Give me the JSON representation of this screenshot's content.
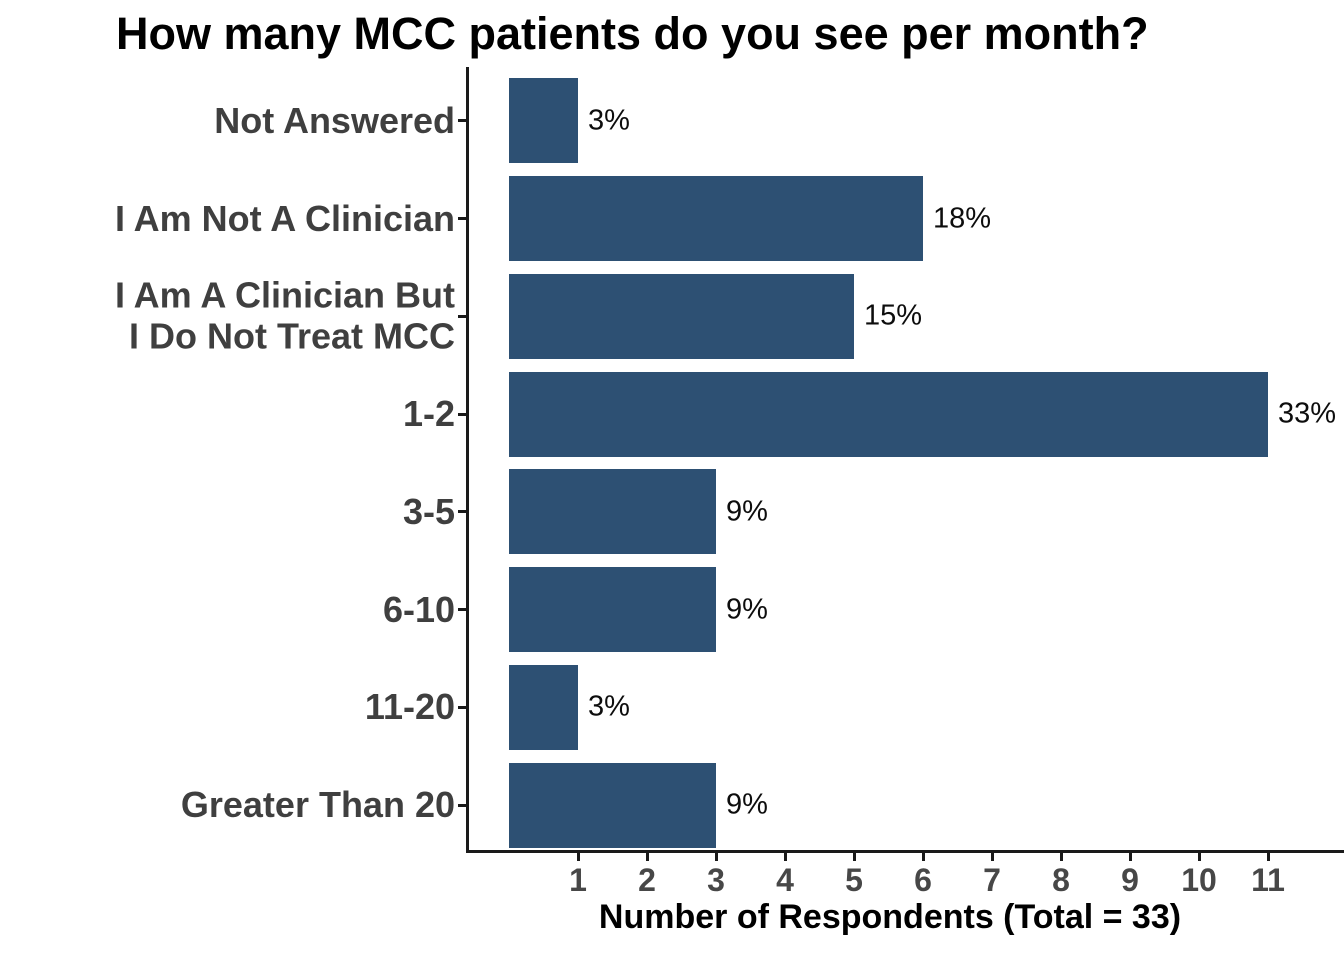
{
  "chart_data": {
    "type": "bar",
    "orientation": "horizontal",
    "title": "How many MCC patients do you see per month?",
    "xlabel": "Number of Respondents (Total = 33)",
    "total": 33,
    "categories": [
      "Not Answered",
      "I Am Not A Clinician",
      "I Am A Clinician But\nI Do Not Treat MCC",
      "1-2",
      "3-5",
      "6-10",
      "11-20",
      "Greater Than 20"
    ],
    "values": [
      1,
      6,
      5,
      11,
      3,
      3,
      1,
      3
    ],
    "value_labels": [
      "3%",
      "18%",
      "15%",
      "33%",
      "9%",
      "9%",
      "3%",
      "9%"
    ],
    "x_ticks": [
      1,
      2,
      3,
      4,
      5,
      6,
      7,
      8,
      9,
      10,
      11
    ],
    "xlim": [
      0,
      12.1
    ],
    "grid": false,
    "legend": false,
    "colors": {
      "bar": "#2d5073",
      "axis_line": "#1a1a1a",
      "title_text": "#000000",
      "category_text": "#3f3f3f",
      "tick_text": "#474747",
      "value_text": "#0d0d0d",
      "background": "#ffffff"
    }
  }
}
